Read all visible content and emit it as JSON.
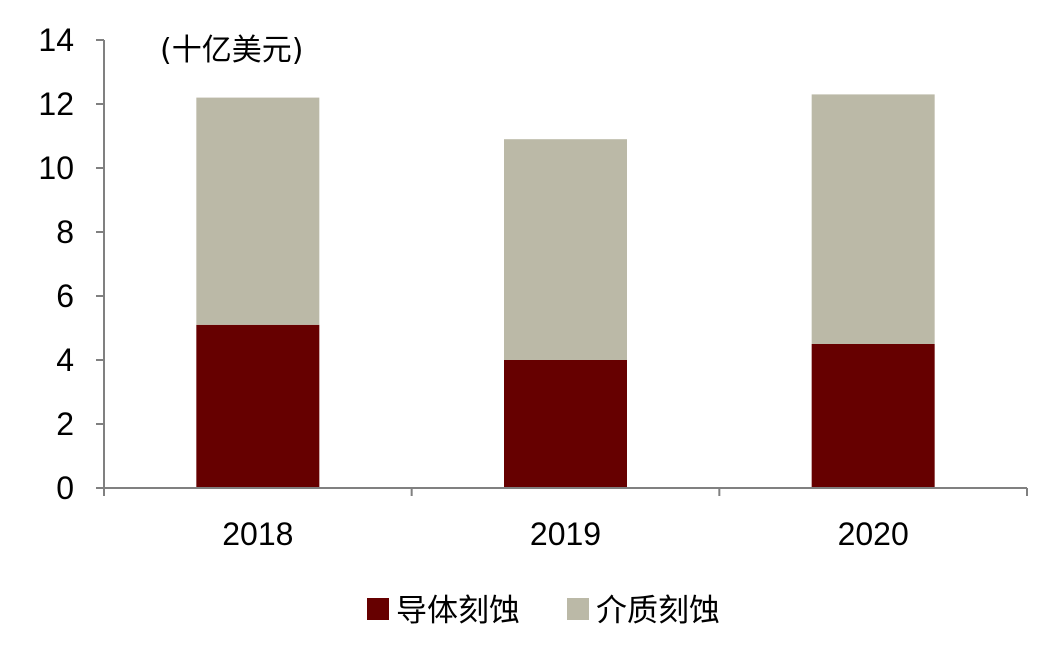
{
  "chart_data": {
    "type": "bar",
    "stacked": true,
    "categories": [
      "2018",
      "2019",
      "2020"
    ],
    "series": [
      {
        "name": "导体刻蚀",
        "values": [
          5.1,
          4.0,
          4.5
        ],
        "color": "#660000"
      },
      {
        "name": "介质刻蚀",
        "values": [
          7.1,
          6.9,
          7.8
        ],
        "color": "#BBB9A7"
      }
    ],
    "unit_label": "(十亿美元)",
    "xlabel": "",
    "ylabel": "",
    "ylim": [
      0,
      14
    ],
    "yticks": [
      0,
      2,
      4,
      6,
      8,
      10,
      12,
      14
    ],
    "grid": false,
    "legend_position": "bottom-center"
  }
}
